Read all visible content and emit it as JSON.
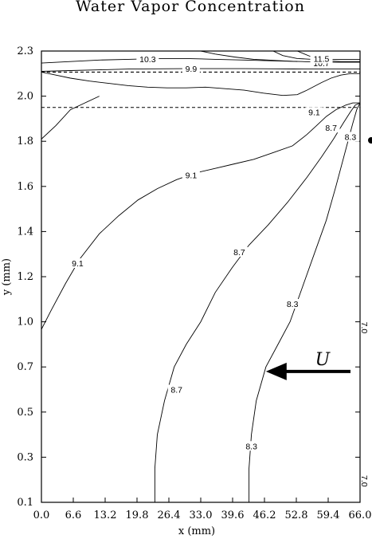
{
  "chart_data": {
    "type": "contour",
    "title": "Water Vapor Concentration",
    "xlabel": "x (mm)",
    "ylabel": "y (mm)",
    "xlim": [
      0.0,
      66.0
    ],
    "ylim": [
      0.1,
      2.3
    ],
    "x_ticks": [
      "0.0",
      "6.6",
      "13.2",
      "19.8",
      "26.4",
      "33.0",
      "39.6",
      "46.2",
      "52.8",
      "59.4",
      "66.0"
    ],
    "y_ticks": [
      "0.1",
      "0.3",
      "0.5",
      "0.7",
      "1.0",
      "1.2",
      "1.4",
      "1.6",
      "1.8",
      "2.0",
      "2.3"
    ],
    "grid": false,
    "interfaces": [
      {
        "style": "dashed",
        "y": 2.16
      },
      {
        "style": "dashed",
        "y": 1.95
      }
    ],
    "contours": [
      {
        "level": "9.1",
        "x": [
          0.0,
          2.0,
          5.0,
          8.0,
          12.0,
          16.0,
          20.0,
          24.0,
          28.0,
          32.0,
          36.0,
          40.0,
          44.0,
          48.0,
          52.0,
          55.0,
          57.0,
          59.0,
          61.0,
          63.0,
          64.5,
          66.0
        ],
        "y": [
          0.95,
          1.05,
          1.17,
          1.28,
          1.39,
          1.47,
          1.54,
          1.59,
          1.63,
          1.66,
          1.68,
          1.7,
          1.72,
          1.75,
          1.78,
          1.83,
          1.87,
          1.91,
          1.94,
          1.96,
          1.97,
          1.97
        ],
        "labels": [
          {
            "text": "9.1",
            "x": 7.5,
            "y": 1.26
          },
          {
            "text": "9.1",
            "x": 31.0,
            "y": 1.65
          },
          {
            "text": "9.1",
            "x": 56.5,
            "y": 1.93
          }
        ]
      },
      {
        "level": "9.1",
        "x": [
          0.0,
          3.0,
          6.0,
          9.0,
          12.0
        ],
        "y": [
          1.81,
          1.87,
          1.94,
          1.97,
          2.0
        ],
        "labels": []
      },
      {
        "level": "8.7",
        "x": [
          23.5,
          23.5,
          24.0,
          25.5,
          27.5,
          30.0,
          33.0,
          36.0,
          39.5,
          43.0,
          47.0,
          51.0,
          55.0,
          58.0,
          60.5,
          62.5,
          64.0,
          65.0,
          66.0
        ],
        "y": [
          0.1,
          0.25,
          0.4,
          0.55,
          0.7,
          0.85,
          1.0,
          1.13,
          1.24,
          1.34,
          1.43,
          1.53,
          1.64,
          1.73,
          1.81,
          1.88,
          1.93,
          1.96,
          1.97
        ],
        "labels": [
          {
            "text": "8.7",
            "x": 28.0,
            "y": 0.6
          },
          {
            "text": "8.7",
            "x": 41.0,
            "y": 1.31
          },
          {
            "text": "8.7",
            "x": 60.0,
            "y": 1.86
          }
        ]
      },
      {
        "level": "8.3",
        "x": [
          43.0,
          43.0,
          43.5,
          44.5,
          46.5,
          49.0,
          51.5,
          54.0,
          56.5,
          59.0,
          61.0,
          62.5,
          63.5,
          64.5,
          65.3,
          66.0
        ],
        "y": [
          0.1,
          0.25,
          0.4,
          0.55,
          0.7,
          0.85,
          1.0,
          1.15,
          1.3,
          1.45,
          1.6,
          1.72,
          1.8,
          1.88,
          1.94,
          1.97
        ],
        "labels": [
          {
            "text": "8.3",
            "x": 43.5,
            "y": 0.35
          },
          {
            "text": "8.3",
            "x": 52.0,
            "y": 1.08
          },
          {
            "text": "8.3",
            "x": 64.0,
            "y": 1.82
          }
        ]
      },
      {
        "level": "9.9",
        "x": [
          0.0,
          6.0,
          12.0,
          18.0,
          24.0,
          30.0,
          36.0,
          42.0,
          48.0,
          52.0,
          55.0,
          58.0,
          60.0,
          62.0,
          64.0,
          66.0
        ],
        "y": [
          2.165,
          2.17,
          2.175,
          2.18,
          2.182,
          2.183,
          2.183,
          2.183,
          2.182,
          2.181,
          2.18,
          2.18,
          2.18,
          2.18,
          2.18,
          2.18
        ],
        "labels": [
          {
            "text": "9.9",
            "x": 31.0,
            "y": 2.183
          }
        ]
      },
      {
        "level": "10.3",
        "x": [
          0.0,
          6.0,
          12.0,
          18.0,
          24.0,
          30.0,
          36.0,
          42.0,
          48.0,
          54.0,
          58.0,
          62.0,
          66.0
        ],
        "y": [
          2.22,
          2.23,
          2.24,
          2.245,
          2.25,
          2.25,
          2.245,
          2.24,
          2.235,
          2.23,
          2.225,
          2.225,
          2.225
        ],
        "labels": [
          {
            "text": "10.3",
            "x": 22.0,
            "y": 2.248
          }
        ]
      },
      {
        "level": "10.7",
        "x": [
          53.0,
          56.0,
          59.0,
          62.0,
          64.0,
          66.0
        ],
        "y": [
          2.3,
          2.26,
          2.235,
          2.23,
          2.23,
          2.23
        ],
        "labels": [
          {
            "text": "10.7",
            "x": 58.0,
            "y": 2.22
          }
        ]
      },
      {
        "level": "11.5",
        "x": [
          48.0,
          50.0,
          53.0,
          56.0,
          59.0,
          62.0,
          66.0
        ],
        "y": [
          2.3,
          2.27,
          2.25,
          2.245,
          2.245,
          2.245,
          2.245
        ],
        "labels": [
          {
            "text": "11.5",
            "x": 58.0,
            "y": 2.25
          }
        ]
      },
      {
        "level": "",
        "x": [
          33.0,
          36.0,
          40.0,
          44.0,
          47.0,
          50.0,
          53.0
        ],
        "y": [
          2.3,
          2.28,
          2.26,
          2.245,
          2.24,
          2.235,
          2.23
        ],
        "labels": []
      },
      {
        "level": "",
        "x": [
          0.0,
          3.0,
          6.0,
          10.0,
          14.0,
          18.0,
          22.0,
          26.0,
          30.0,
          34.0,
          38.0,
          42.0,
          46.0,
          50.0,
          53.0,
          55.0,
          58.0,
          60.0,
          62.0,
          64.0,
          66.0
        ],
        "y": [
          2.16,
          2.14,
          2.12,
          2.1,
          2.085,
          2.07,
          2.06,
          2.055,
          2.055,
          2.06,
          2.05,
          2.04,
          2.02,
          2.005,
          2.01,
          2.04,
          2.09,
          2.12,
          2.14,
          2.15,
          2.15
        ],
        "labels": []
      }
    ],
    "edge_labels": [
      {
        "text": "7.0",
        "x": 66.0,
        "y": 1.0
      },
      {
        "text": "7.0",
        "x": 66.0,
        "y": 0.22
      }
    ],
    "annotations": [
      {
        "text": "U",
        "type": "arrow",
        "direction": "left",
        "x_from": 66.0,
        "x_to": 46.5,
        "y": 0.68
      }
    ]
  }
}
